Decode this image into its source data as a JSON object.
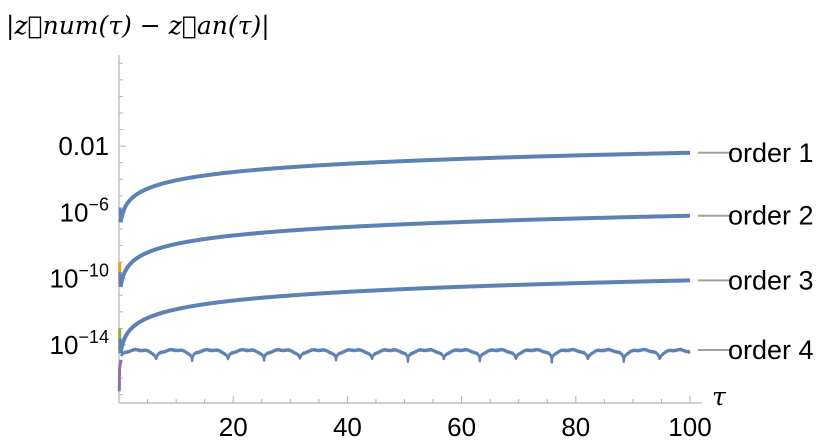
{
  "chart_data": {
    "type": "line",
    "title": "",
    "ylabel": "|z⃗num(τ) − z⃗an(τ)|",
    "xlabel": "τ",
    "xlim": [
      0,
      100
    ],
    "ylim_log10": [
      -17.5,
      3.5
    ],
    "y_scale": "log",
    "x_ticks": [
      20,
      40,
      60,
      80,
      100
    ],
    "x_tick_labels": [
      "20",
      "40",
      "60",
      "80",
      "100"
    ],
    "y_ticks": [
      {
        "exp": -2,
        "label": "0.01",
        "base": "",
        "sup": ""
      },
      {
        "exp": -6,
        "label": "",
        "base": "10",
        "sup": "−6"
      },
      {
        "exp": -10,
        "label": "",
        "base": "10",
        "sup": "−10"
      },
      {
        "exp": -14,
        "label": "",
        "base": "10",
        "sup": "−14"
      }
    ],
    "legend_placement": "right",
    "series": [
      {
        "name": "order 1",
        "start_log10": -6.6,
        "end_log10": -2.4,
        "color": "#5e81b5"
      },
      {
        "name": "order 2",
        "start_log10": -10.5,
        "end_log10": -6.2,
        "color": "#5e81b5"
      },
      {
        "name": "order 3",
        "start_log10": -14.5,
        "end_log10": -10.1,
        "color": "#5e81b5"
      },
      {
        "name": "order 4",
        "plateau_log10": -14.3,
        "dip_log10": -15.2,
        "period": 6.3,
        "color": "#5e81b5"
      }
    ],
    "start_segment_colors": [
      "#e19c24",
      "#8fb032"
    ]
  }
}
